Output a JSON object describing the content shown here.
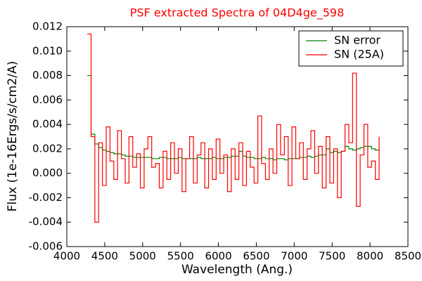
{
  "chart_data": {
    "type": "step",
    "title": "PSF extracted Spectra of 04D4ge_598",
    "xlabel": "Wavelength (Ang.)",
    "ylabel": "Flux (1e-16Ergs/s/cm2/A)",
    "x": [
      4270,
      4320,
      4370,
      4420,
      4470,
      4520,
      4570,
      4620,
      4670,
      4720,
      4770,
      4820,
      4870,
      4920,
      4970,
      5020,
      5070,
      5120,
      5170,
      5220,
      5270,
      5320,
      5370,
      5420,
      5470,
      5520,
      5570,
      5620,
      5670,
      5720,
      5770,
      5820,
      5870,
      5920,
      5970,
      6020,
      6070,
      6120,
      6170,
      6220,
      6270,
      6320,
      6370,
      6420,
      6470,
      6520,
      6570,
      6620,
      6670,
      6720,
      6770,
      6820,
      6870,
      6920,
      6970,
      7020,
      7070,
      7120,
      7170,
      7220,
      7270,
      7320,
      7370,
      7420,
      7470,
      7520,
      7570,
      7620,
      7670,
      7720,
      7770,
      7820,
      7870,
      7920,
      7970,
      8020,
      8070,
      8120
    ],
    "series": [
      {
        "name": "SN error",
        "color": "#008000",
        "values": [
          0.008,
          0.0032,
          0.0024,
          0.0021,
          0.0019,
          0.0018,
          0.0017,
          0.0016,
          0.0016,
          0.0015,
          0.0014,
          0.0014,
          0.0013,
          0.0013,
          0.0013,
          0.0013,
          0.0013,
          0.0012,
          0.0012,
          0.0013,
          0.0013,
          0.0012,
          0.0012,
          0.0012,
          0.0013,
          0.0012,
          0.0012,
          0.0012,
          0.0012,
          0.0013,
          0.0012,
          0.0012,
          0.0012,
          0.0013,
          0.0012,
          0.0012,
          0.0013,
          0.0013,
          0.0014,
          0.0014,
          0.0018,
          0.0014,
          0.0013,
          0.0013,
          0.0012,
          0.0012,
          0.0013,
          0.0012,
          0.0012,
          0.0011,
          0.0012,
          0.0012,
          0.0011,
          0.0012,
          0.0012,
          0.0012,
          0.0013,
          0.0013,
          0.0014,
          0.0013,
          0.0014,
          0.0015,
          0.0015,
          0.002,
          0.0017,
          0.0018,
          0.0017,
          0.0018,
          0.0022,
          0.002,
          0.0019,
          0.002,
          0.0021,
          0.0022,
          0.0022,
          0.002,
          0.0019,
          0.0019
        ]
      },
      {
        "name": "SN (25A)",
        "color": "#ff0000",
        "values": [
          0.0114,
          0.003,
          -0.004,
          0.0025,
          -0.001,
          0.0038,
          0.001,
          -0.0005,
          0.0035,
          0.0012,
          -0.0008,
          0.003,
          0.0005,
          0.0016,
          -0.0012,
          0.002,
          0.003,
          0.0005,
          0.0008,
          -0.0012,
          0.0018,
          -0.0005,
          0.0025,
          0.0,
          0.002,
          -0.0015,
          0.0012,
          0.003,
          -0.0008,
          0.0015,
          0.0025,
          -0.0012,
          0.002,
          -0.0005,
          0.0028,
          0.0,
          0.0015,
          -0.0015,
          0.002,
          -0.0005,
          0.0025,
          -0.001,
          0.0018,
          0.0005,
          -0.0008,
          0.0047,
          0.0008,
          -0.0005,
          0.002,
          0.0,
          0.004,
          0.0015,
          0.003,
          -0.001,
          0.0038,
          0.0012,
          0.0025,
          -0.0005,
          0.002,
          0.0035,
          0.0,
          0.0022,
          -0.0012,
          0.003,
          -0.0008,
          0.002,
          -0.002,
          0.0018,
          0.004,
          0.0025,
          0.0082,
          -0.0027,
          0.0015,
          0.004,
          0.0005,
          0.001,
          -0.0005,
          0.003
        ]
      }
    ],
    "xlim": [
      4000,
      8500
    ],
    "xticks": [
      4000,
      4500,
      5000,
      5500,
      6000,
      6500,
      7000,
      7500,
      8000,
      8500
    ],
    "ylim": [
      -0.006,
      0.012
    ],
    "yticks": [
      {
        "value": -0.006,
        "label": "-0.006"
      },
      {
        "value": -0.004,
        "label": "-0.004"
      },
      {
        "value": -0.002,
        "label": "-0.002"
      },
      {
        "value": 0,
        "label": "0.000"
      },
      {
        "value": 0.002,
        "label": "0.002"
      },
      {
        "value": 0.004,
        "label": "0.004"
      },
      {
        "value": 0.006,
        "label": "0.006"
      },
      {
        "value": 0.008,
        "label": "0.008"
      },
      {
        "value": 0.01,
        "label": "0.010"
      },
      {
        "value": 0.012,
        "label": "0.012"
      }
    ],
    "legend": "upper right",
    "title_color": "#ff0000"
  }
}
